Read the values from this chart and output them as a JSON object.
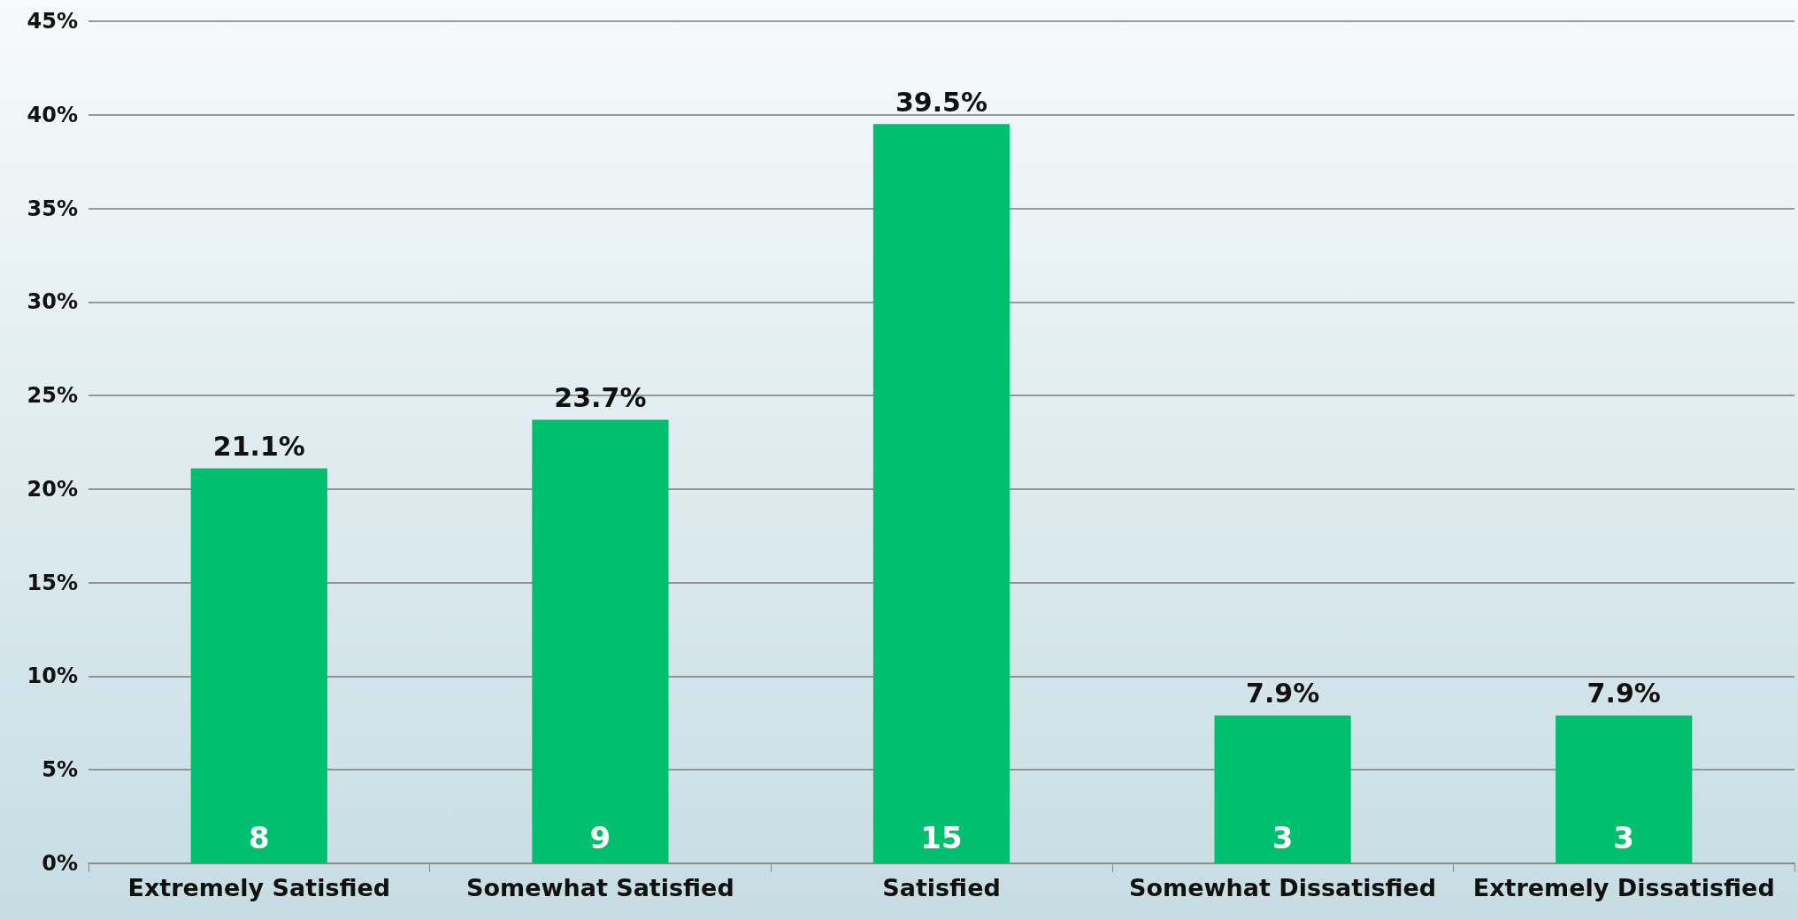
{
  "chart_data": {
    "type": "bar",
    "categories": [
      "Extremely Satisfied",
      "Somewhat Satisfied",
      "Satisfied",
      "Somewhat Dissatisfied",
      "Extremely Dissatisfied"
    ],
    "values": [
      21.1,
      23.7,
      39.5,
      7.9,
      7.9
    ],
    "color": "#00bf6f",
    "value_labels": [
      "21.1%",
      "23.7%",
      "39.5%",
      "7.9%",
      "7.9%"
    ],
    "ylim": [
      0,
      45
    ],
    "yticks": [
      {
        "value": 0,
        "label": "0%"
      },
      {
        "value": 5,
        "label": "5%"
      },
      {
        "value": 10,
        "label": "10%"
      },
      {
        "value": 15,
        "label": "15%"
      },
      {
        "value": 20,
        "label": "20%"
      },
      {
        "value": 25,
        "label": "25%"
      },
      {
        "value": 30,
        "label": "30%"
      },
      {
        "value": 35,
        "label": "35%"
      },
      {
        "value": 40,
        "label": "40%"
      },
      {
        "value": 45,
        "label": "45%"
      }
    ],
    "grid": "y",
    "annotations": [
      {
        "text": "8",
        "x": "Extremely Satisfied",
        "y": 0
      },
      {
        "text": "9",
        "x": "Somewhat Satisfied",
        "y": 0
      },
      {
        "text": "15",
        "x": "Satisfied",
        "y": 0
      },
      {
        "text": "3",
        "x": "Somewhat Dissatisfied",
        "y": 0
      },
      {
        "text": "3",
        "x": "Extremely Dissatisfied",
        "y": 0
      }
    ]
  }
}
